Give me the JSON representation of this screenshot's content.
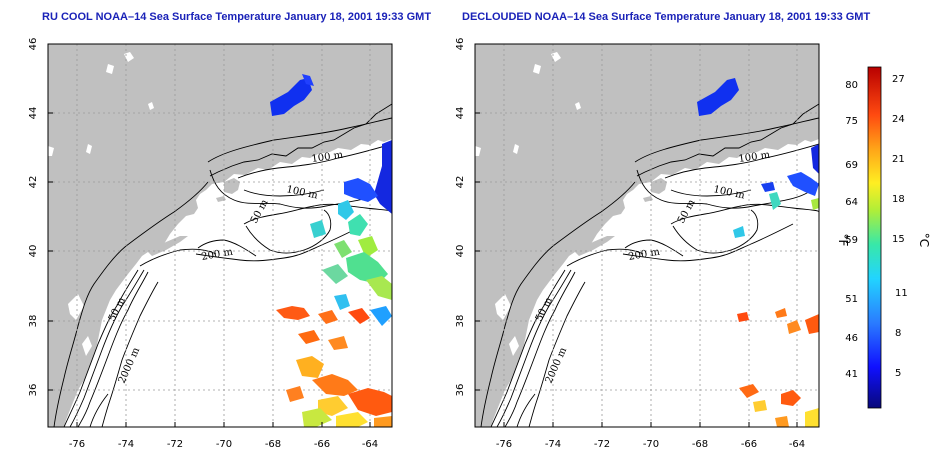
{
  "titles": {
    "left": "RU COOL NOAA–14 Sea Surface Temperature January 18, 2001 19:33 GMT",
    "right": "DECLOUDED NOAA–14 Sea Surface Temperature January 18, 2001 19:33 GMT"
  },
  "axes": {
    "lon_ticks": [
      "-76",
      "-74",
      "-72",
      "-70",
      "-68",
      "-66",
      "-64"
    ],
    "lat_ticks": [
      "46",
      "44",
      "42",
      "40",
      "38",
      "36"
    ]
  },
  "contours": [
    "100 m",
    "100 m",
    "50 m",
    "200 m",
    "50 m",
    "2000 m"
  ],
  "colorbar": {
    "unit_f": "°F",
    "unit_c": "°C",
    "f_labels": [
      "80",
      "75",
      "69",
      "64",
      "59",
      "51",
      "46",
      "41"
    ],
    "c_labels": [
      "27",
      "24",
      "21",
      "18",
      "15",
      "11",
      "8",
      "5"
    ]
  },
  "colors": {
    "land": "#c0c0c0",
    "ocean": "#ffffff",
    "title": "#1a22b8",
    "gridline": "#9a9a9a"
  }
}
